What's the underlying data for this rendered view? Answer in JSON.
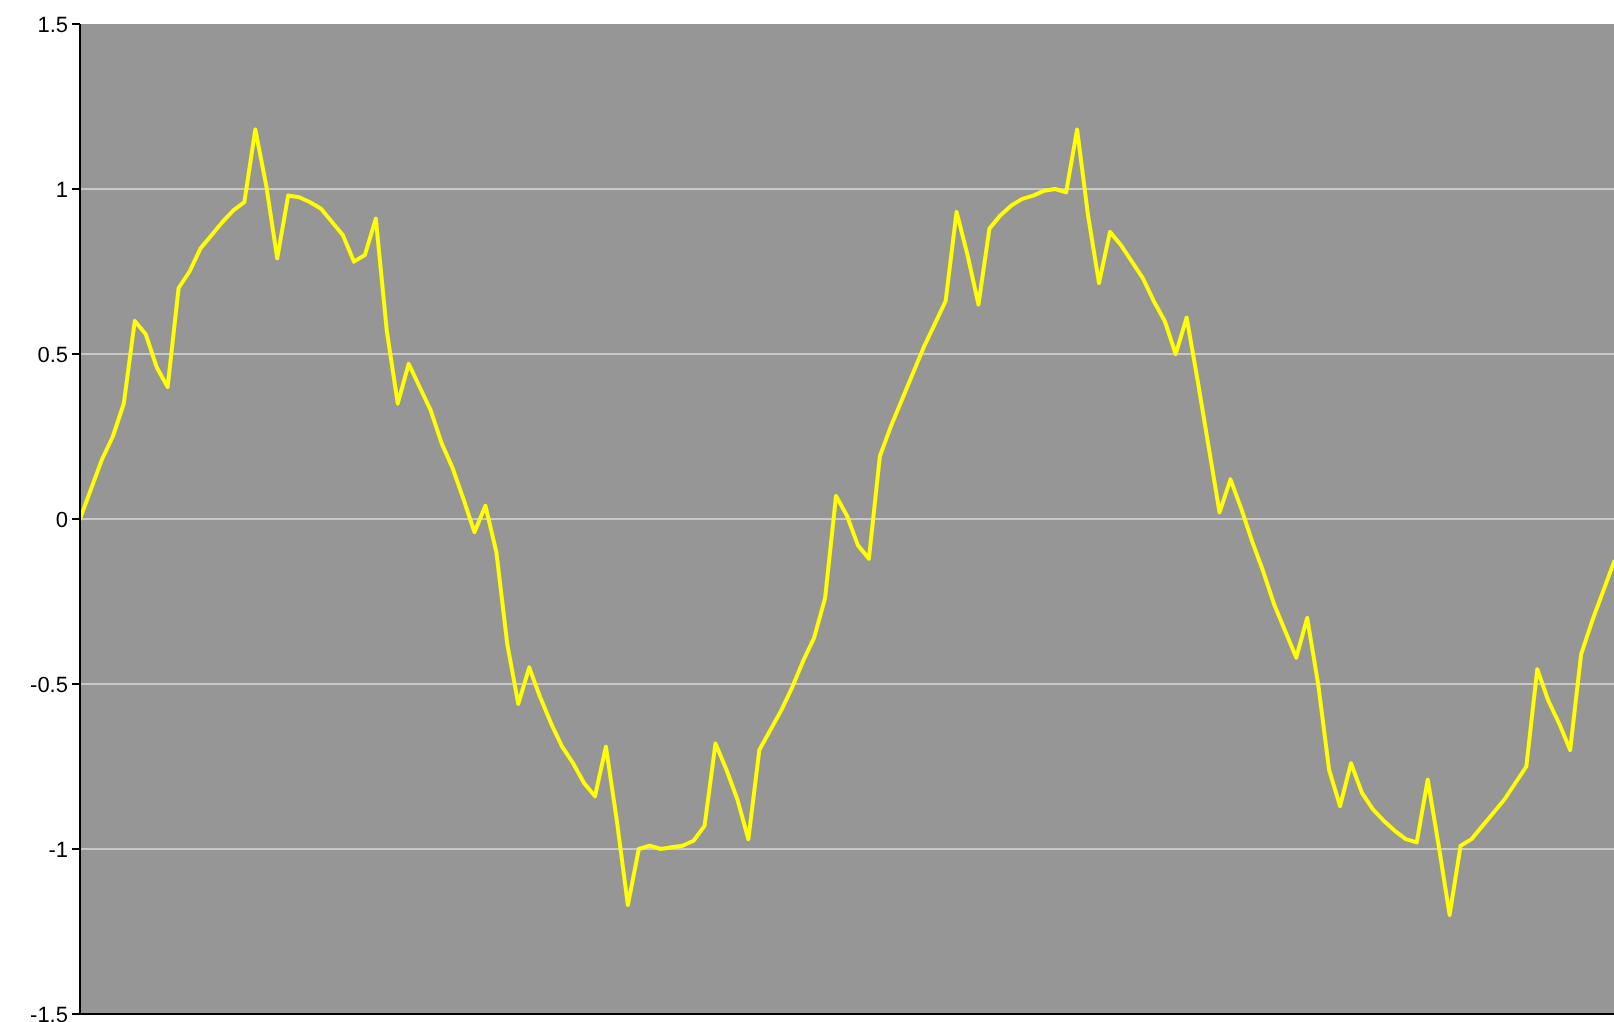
{
  "chart_data": {
    "type": "line",
    "categories": [
      null,
      null,
      null,
      null,
      null,
      null,
      null,
      null,
      null,
      null,
      null,
      null,
      null,
      null,
      null,
      null,
      null,
      null,
      null,
      null,
      null,
      null,
      null,
      null,
      null,
      null,
      null,
      null,
      null,
      null,
      null,
      null,
      null,
      null,
      null,
      null,
      null,
      null,
      null,
      null,
      null,
      null,
      null,
      null,
      null,
      null,
      null,
      null,
      null,
      null,
      null,
      null,
      null,
      null,
      null,
      null,
      null,
      null,
      null,
      null,
      null,
      null,
      null,
      null,
      null,
      null,
      null,
      null,
      null,
      null,
      null,
      null,
      null,
      null,
      null,
      null,
      null,
      null,
      null,
      null,
      null,
      null,
      null,
      null,
      null,
      null,
      null,
      null,
      null,
      null,
      null,
      null,
      null,
      null,
      null,
      null,
      null,
      null,
      null,
      null,
      null,
      null,
      null,
      null,
      null,
      null,
      null,
      null,
      null,
      null,
      null,
      null,
      null,
      null,
      null,
      null,
      null,
      null,
      null,
      null,
      null,
      null,
      null,
      null,
      null,
      null,
      null,
      null,
      null,
      null,
      null,
      null,
      null,
      null,
      null,
      null,
      null,
      null,
      null,
      null,
      null
    ],
    "series": [
      {
        "color": "#ffff00",
        "values": [
          0,
          0.09,
          0.18,
          0.25,
          0.35,
          0.6,
          0.56,
          0.46,
          0.4,
          0.7,
          0.75,
          0.82,
          0.86,
          0.9,
          0.935,
          0.96,
          1.18,
          1.01,
          0.79,
          0.98,
          0.975,
          0.96,
          0.94,
          0.9,
          0.86,
          0.78,
          0.8,
          0.91,
          0.57,
          0.35,
          0.47,
          0.4,
          0.33,
          0.23,
          0.155,
          0.06,
          -0.04,
          0.04,
          -0.1,
          -0.38,
          -0.56,
          -0.45,
          -0.54,
          -0.62,
          -0.69,
          -0.74,
          -0.8,
          -0.84,
          -0.69,
          -0.915,
          -1.17,
          -1,
          -0.99,
          -1,
          -0.995,
          -0.99,
          -0.975,
          -0.93,
          -0.68,
          -0.76,
          -0.85,
          -0.97,
          -0.7,
          -0.64,
          -0.58,
          -0.51,
          -0.43,
          -0.36,
          -0.24,
          0.07,
          0.01,
          -0.08,
          -0.12,
          0.19,
          0.28,
          0.36,
          0.44,
          0.52,
          0.59,
          0.66,
          0.93,
          0.8,
          0.65,
          0.88,
          0.92,
          0.95,
          0.97,
          0.98,
          0.995,
          1,
          0.99,
          1.18,
          0.92,
          0.715,
          0.87,
          0.83,
          0.78,
          0.73,
          0.66,
          0.6,
          0.5,
          0.61,
          0.42,
          0.22,
          0.02,
          0.12,
          0.03,
          -0.07,
          -0.16,
          -0.26,
          -0.34,
          -0.42,
          -0.3,
          -0.5,
          -0.76,
          -0.87,
          -0.74,
          -0.83,
          -0.88,
          -0.915,
          -0.945,
          -0.97,
          -0.98,
          -0.79,
          -0.99,
          -1.2,
          -0.99,
          -0.97,
          -0.93,
          -0.89,
          -0.85,
          -0.8,
          -0.75,
          -0.455,
          -0.55,
          -0.62,
          -0.7,
          -0.41,
          -0.31,
          -0.22,
          -0.13
        ]
      }
    ],
    "ylim": [
      -1.5,
      1.5
    ],
    "yticks": [
      -1.5,
      -1,
      -0.5,
      0,
      0.5,
      1,
      1.5
    ],
    "grid": "y",
    "tick_labels": "y",
    "marker": "none",
    "line_style": "solid"
  }
}
